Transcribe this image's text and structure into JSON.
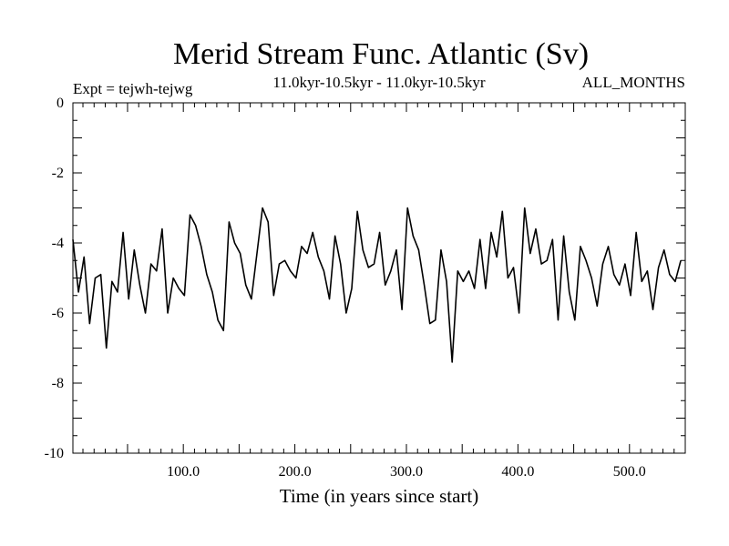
{
  "chart_data": {
    "type": "line",
    "title": "Merid Stream Func. Atlantic (Sv)",
    "subtitle_left": "Expt = tejwh-tejwg",
    "subtitle_center": "11.0kyr-10.5kyr - 11.0kyr-10.5kyr",
    "subtitle_right": "ALL_MONTHS",
    "xlabel": "Time (in years since start)",
    "ylabel": "",
    "xlim": [
      1,
      550
    ],
    "ylim": [
      -10,
      0
    ],
    "x_ticks": [
      100,
      200,
      300,
      400,
      500
    ],
    "x_tick_labels": [
      "100.0",
      "200.0",
      "300.0",
      "400.0",
      "500.0"
    ],
    "y_ticks": [
      0,
      -2,
      -4,
      -6,
      -8,
      -10
    ],
    "y_tick_labels": [
      "0",
      "-2",
      "-4",
      "-6",
      "-8",
      "-10"
    ],
    "line_color": "#000000",
    "series": [
      {
        "name": "Merid Stream Func. Atlantic",
        "x_start": 1,
        "x_step": 5,
        "values": [
          -3.9,
          -5.4,
          -4.4,
          -6.3,
          -5.0,
          -4.9,
          -7.0,
          -5.1,
          -5.4,
          -3.7,
          -5.6,
          -4.2,
          -5.2,
          -6.0,
          -4.6,
          -4.8,
          -3.6,
          -6.0,
          -5.0,
          -5.3,
          -5.5,
          -3.2,
          -3.5,
          -4.1,
          -4.9,
          -5.4,
          -6.2,
          -6.5,
          -3.4,
          -4.0,
          -4.3,
          -5.2,
          -5.6,
          -4.3,
          -3.0,
          -3.4,
          -5.5,
          -4.6,
          -4.5,
          -4.8,
          -5.0,
          -4.1,
          -4.3,
          -3.7,
          -4.4,
          -4.8,
          -5.6,
          -3.8,
          -4.6,
          -6.0,
          -5.3,
          -3.1,
          -4.2,
          -4.7,
          -4.6,
          -3.7,
          -5.2,
          -4.8,
          -4.2,
          -5.9,
          -3.0,
          -3.8,
          -4.2,
          -5.2,
          -6.3,
          -6.2,
          -4.2,
          -5.1,
          -7.4,
          -4.8,
          -5.1,
          -4.8,
          -5.3,
          -3.9,
          -5.3,
          -3.7,
          -4.4,
          -3.1,
          -5.0,
          -4.7,
          -6.0,
          -3.0,
          -4.3,
          -3.6,
          -4.6,
          -4.5,
          -3.9,
          -6.2,
          -3.8,
          -5.4,
          -6.2,
          -4.1,
          -4.5,
          -5.0,
          -5.8,
          -4.6,
          -4.1,
          -4.9,
          -5.2,
          -4.6,
          -5.5,
          -3.7,
          -5.1,
          -4.8,
          -5.9,
          -4.7,
          -4.2,
          -4.9,
          -5.1,
          -4.5
        ]
      }
    ]
  }
}
